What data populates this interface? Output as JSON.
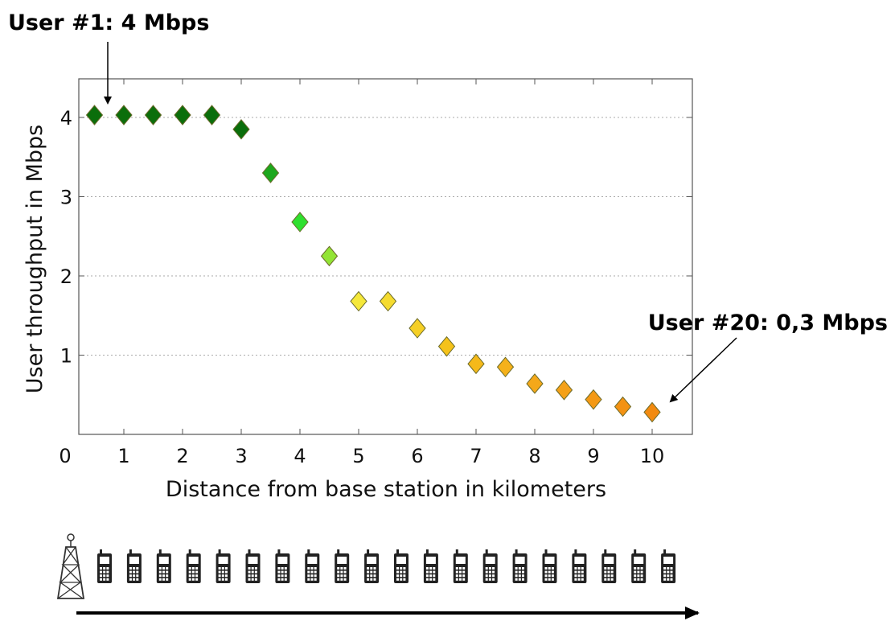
{
  "chart_data": {
    "type": "scatter",
    "title": "",
    "xlabel": "Distance from base station in kilometers",
    "ylabel": "User throughput in Mbps",
    "xlim": [
      0,
      10.5
    ],
    "ylim": [
      0,
      4.5
    ],
    "xticks": [
      0,
      1,
      2,
      3,
      4,
      5,
      6,
      7,
      8,
      9,
      10
    ],
    "yticks": [
      1,
      2,
      3,
      4
    ],
    "grid": "horizontal dotted",
    "marker": "diamond",
    "colors": {
      "dark_green": "#0b6e0b",
      "light_green": "#2fe02f",
      "yellow": "#f5e83a",
      "orange": "#f28a10"
    },
    "points": [
      {
        "x": 0.5,
        "y": 4.03
      },
      {
        "x": 1.0,
        "y": 4.03
      },
      {
        "x": 1.5,
        "y": 4.03
      },
      {
        "x": 2.0,
        "y": 4.03
      },
      {
        "x": 2.5,
        "y": 4.03
      },
      {
        "x": 3.0,
        "y": 3.85
      },
      {
        "x": 3.5,
        "y": 3.3
      },
      {
        "x": 4.0,
        "y": 2.68
      },
      {
        "x": 4.5,
        "y": 2.25
      },
      {
        "x": 5.0,
        "y": 1.68
      },
      {
        "x": 5.5,
        "y": 1.68
      },
      {
        "x": 6.0,
        "y": 1.34
      },
      {
        "x": 6.5,
        "y": 1.11
      },
      {
        "x": 7.0,
        "y": 0.89
      },
      {
        "x": 7.5,
        "y": 0.85
      },
      {
        "x": 8.0,
        "y": 0.64
      },
      {
        "x": 8.5,
        "y": 0.56
      },
      {
        "x": 9.0,
        "y": 0.44
      },
      {
        "x": 9.5,
        "y": 0.35
      },
      {
        "x": 10.0,
        "y": 0.28
      }
    ],
    "annotations": [
      {
        "text": "User #1: 4 Mbps",
        "x": 0.5,
        "y": 4.03
      },
      {
        "text": "User #20: 0,3 Mbps",
        "x": 10.0,
        "y": 0.28
      }
    ]
  },
  "illustration": {
    "tower_icon": "cell-tower-icon",
    "phone_icon": "mobile-phone-icon",
    "phone_count": 20,
    "arrow_icon": "right-arrow-icon"
  }
}
